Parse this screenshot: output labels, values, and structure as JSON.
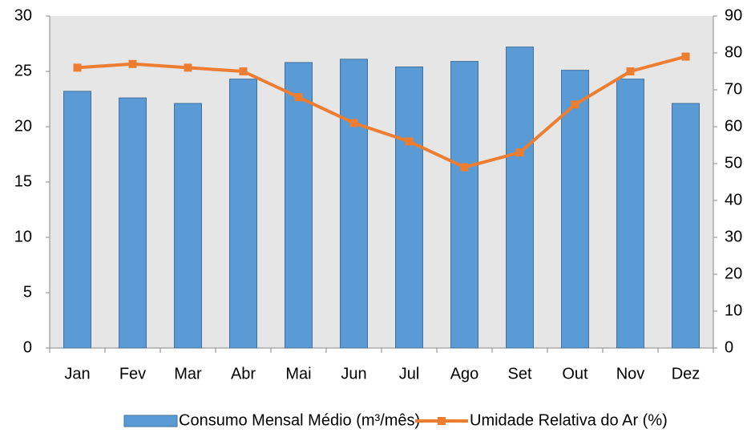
{
  "chart_data": {
    "type": "bar_line",
    "categories": [
      "Jan",
      "Fev",
      "Mar",
      "Abr",
      "Mai",
      "Jun",
      "Jul",
      "Ago",
      "Set",
      "Out",
      "Nov",
      "Dez"
    ],
    "series": [
      {
        "name": "Consumo Mensal Médio (m³/mês)",
        "type": "bar",
        "color": "#5b9bd5",
        "values": [
          23.2,
          22.6,
          22.1,
          24.3,
          25.8,
          26.1,
          25.4,
          25.9,
          27.2,
          25.1,
          24.3,
          22.1
        ]
      },
      {
        "name": "Umidade Relativa do Ar (%)",
        "type": "line",
        "axis": "y2",
        "color": "#ed7d31",
        "values": [
          76,
          77,
          76,
          75,
          68,
          61,
          56,
          49,
          53,
          66,
          75,
          79
        ]
      }
    ],
    "ylim": [
      0,
      30
    ],
    "yticks": [
      0,
      5,
      10,
      15,
      20,
      25,
      30
    ],
    "y2lim": [
      0,
      90
    ],
    "y2ticks": [
      0,
      10,
      20,
      30,
      40,
      50,
      60,
      70,
      80,
      90
    ],
    "legend": "bottom"
  }
}
